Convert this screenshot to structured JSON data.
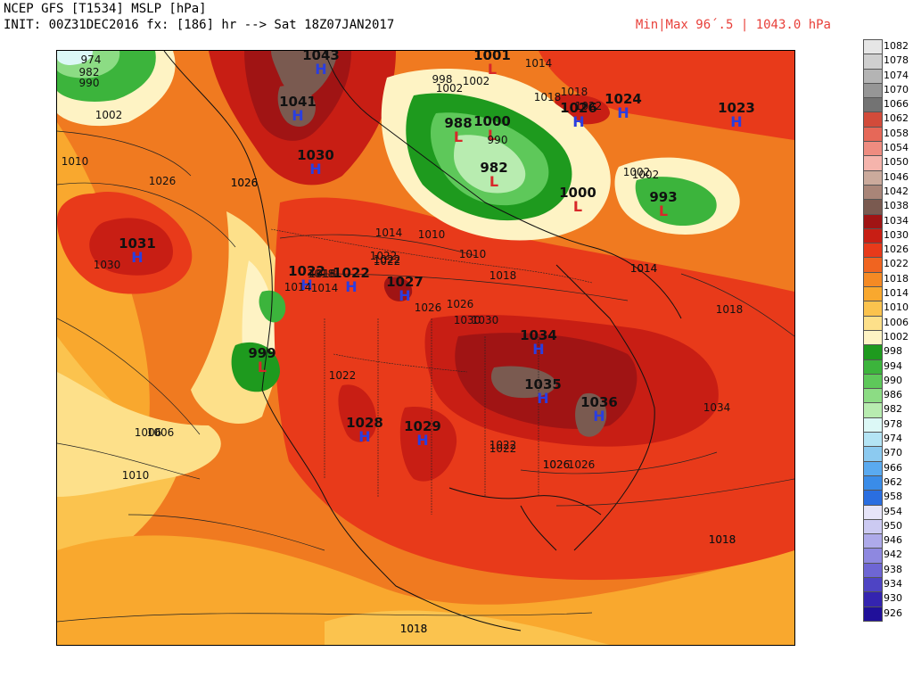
{
  "header": {
    "title": "NCEP GFS [T1534] MSLP [hPa]",
    "init": "INIT: 00Z31DEC2016 fx: [186] hr --> Sat 18Z07JAN2017",
    "minmax": "Min|Max 96´.5 | 1043.0 hPa"
  },
  "colors": {
    "bg_orange": "#f07a20",
    "deep_orange": "#e8501e",
    "mid_orange": "#f59a2a",
    "light_orange": "#fab83c",
    "pale_yellow": "#fde9a8",
    "yellow": "#fcd57a",
    "red": "#d9301c",
    "dark_red": "#a01414",
    "brown": "#7a5a50",
    "green": "#2fa22f",
    "light_green": "#6ccf5c",
    "pale_green": "#a8eaa0",
    "contour_blue": "#2a3ee0",
    "contour_red": "#d8282a"
  },
  "pressure_centers": [
    {
      "type": "H",
      "value": "1043"
    },
    {
      "type": "L",
      "value": "1001"
    },
    {
      "type": "H",
      "value": "1041"
    },
    {
      "type": "H",
      "value": "1030"
    },
    {
      "type": "H",
      "value": "1031"
    },
    {
      "type": "H",
      "value": "1022"
    },
    {
      "type": "H",
      "value": "1022"
    },
    {
      "type": "H",
      "value": "1027"
    },
    {
      "type": "L",
      "value": "1000"
    },
    {
      "type": "L",
      "value": "999"
    },
    {
      "type": "H",
      "value": "1034"
    },
    {
      "type": "H",
      "value": "1035"
    },
    {
      "type": "H",
      "value": "1036"
    },
    {
      "type": "H",
      "value": "1028"
    },
    {
      "type": "H",
      "value": "1029"
    },
    {
      "type": "L",
      "value": "1000"
    },
    {
      "type": "L",
      "value": "993"
    },
    {
      "type": "L",
      "value": "988"
    },
    {
      "type": "L",
      "value": "982"
    },
    {
      "type": "H",
      "value": "1026"
    },
    {
      "type": "H",
      "value": "1024"
    },
    {
      "type": "H",
      "value": "1023"
    }
  ],
  "isobar_labels": [
    "974",
    "982",
    "990",
    "1002",
    "1010",
    "1026",
    "1030",
    "1010",
    "1006",
    "1010",
    "1014",
    "1018",
    "1026",
    "1002",
    "1010",
    "1014",
    "1018",
    "1022",
    "1026",
    "1030",
    "1018",
    "1014",
    "1022",
    "1026",
    "1034",
    "1022",
    "1018",
    "1018",
    "1014",
    "1022",
    "1026",
    "1018",
    "1002",
    "1014",
    "998",
    "1002",
    "990",
    "1026",
    "1018",
    "1022",
    "1026",
    "1018",
    "1022",
    "1030",
    "1026",
    "1018",
    "1002",
    "1014",
    "1006",
    "1018",
    "1022"
  ],
  "legend": {
    "levels": [
      {
        "label": "1082",
        "color": "#e6e6e6"
      },
      {
        "label": "1078",
        "color": "#cfcfcf"
      },
      {
        "label": "1074",
        "color": "#b4b4b4"
      },
      {
        "label": "1070",
        "color": "#969696"
      },
      {
        "label": "1066",
        "color": "#737373"
      },
      {
        "label": "1062",
        "color": "#d24b3a"
      },
      {
        "label": "1058",
        "color": "#e66858"
      },
      {
        "label": "1054",
        "color": "#ee8c80"
      },
      {
        "label": "1050",
        "color": "#f5b4ac"
      },
      {
        "label": "1046",
        "color": "#cbaa9c"
      },
      {
        "label": "1042",
        "color": "#a98578"
      },
      {
        "label": "1038",
        "color": "#7a5a50"
      },
      {
        "label": "1034",
        "color": "#a01414"
      },
      {
        "label": "1030",
        "color": "#c81e14"
      },
      {
        "label": "1026",
        "color": "#e83a1a"
      },
      {
        "label": "1022",
        "color": "#f06420"
      },
      {
        "label": "1018",
        "color": "#f58a24"
      },
      {
        "label": "1014",
        "color": "#f9a82e"
      },
      {
        "label": "1010",
        "color": "#fbc34e"
      },
      {
        "label": "1006",
        "color": "#fde08a"
      },
      {
        "label": "1002",
        "color": "#fef3c4"
      },
      {
        "label": "998",
        "color": "#1e9a1e"
      },
      {
        "label": "994",
        "color": "#3cb43c"
      },
      {
        "label": "990",
        "color": "#5ec85a"
      },
      {
        "label": "986",
        "color": "#8cdc84"
      },
      {
        "label": "982",
        "color": "#b8ecb0"
      },
      {
        "label": "978",
        "color": "#dcf8f6"
      },
      {
        "label": "974",
        "color": "#b4e4f4"
      },
      {
        "label": "970",
        "color": "#8ccaf0"
      },
      {
        "label": "966",
        "color": "#5aaaf0"
      },
      {
        "label": "962",
        "color": "#3a8ce8"
      },
      {
        "label": "958",
        "color": "#2a6ee0"
      },
      {
        "label": "954",
        "color": "#e6e4f8"
      },
      {
        "label": "950",
        "color": "#cccaf2"
      },
      {
        "label": "946",
        "color": "#aeaaea"
      },
      {
        "label": "942",
        "color": "#8e88e0"
      },
      {
        "label": "938",
        "color": "#6e66d4"
      },
      {
        "label": "934",
        "color": "#4e44c4"
      },
      {
        "label": "930",
        "color": "#3424b0"
      },
      {
        "label": "926",
        "color": "#20109a"
      }
    ]
  }
}
